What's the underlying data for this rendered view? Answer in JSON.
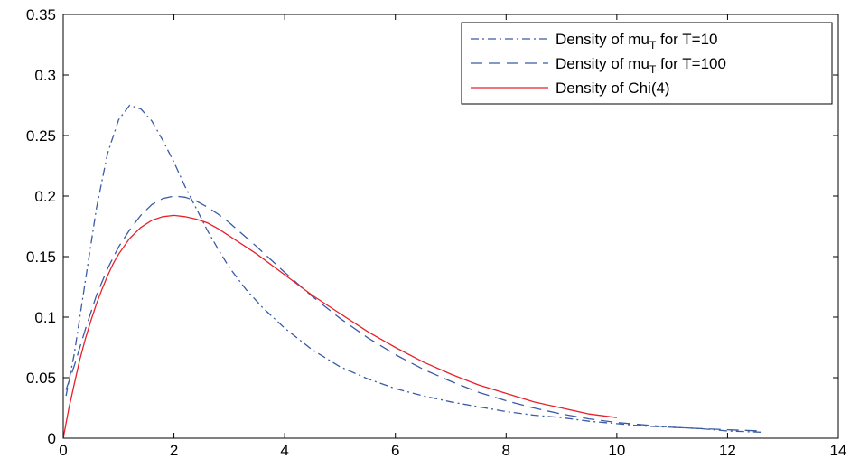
{
  "chart_data": {
    "type": "line",
    "title": "",
    "xlabel": "",
    "ylabel": "",
    "xlim": [
      0,
      14
    ],
    "ylim": [
      0,
      0.35
    ],
    "xticks": [
      0,
      2,
      4,
      6,
      8,
      10,
      12,
      14
    ],
    "yticks": [
      0,
      0.05,
      0.1,
      0.15,
      0.2,
      0.25,
      0.3,
      0.35
    ],
    "xtick_labels": [
      "0",
      "2",
      "4",
      "6",
      "8",
      "10",
      "12",
      "14"
    ],
    "ytick_labels": [
      "0",
      "0.05",
      "0.1",
      "0.15",
      "0.2",
      "0.25",
      "0.3",
      "0.35"
    ],
    "grid": false,
    "legend_position": "top-right",
    "series": [
      {
        "name": "Density of mu_T for T=10",
        "label_main": "Density of mu",
        "label_sub": "T",
        "label_tail": " for T=10",
        "color": "#3b5ba5",
        "style": "dashdot",
        "points": [
          [
            0.05,
            0.035
          ],
          [
            0.2,
            0.07
          ],
          [
            0.4,
            0.13
          ],
          [
            0.6,
            0.19
          ],
          [
            0.8,
            0.235
          ],
          [
            1.0,
            0.263
          ],
          [
            1.2,
            0.275
          ],
          [
            1.4,
            0.272
          ],
          [
            1.6,
            0.262
          ],
          [
            1.8,
            0.246
          ],
          [
            2.0,
            0.228
          ],
          [
            2.2,
            0.208
          ],
          [
            2.4,
            0.19
          ],
          [
            2.6,
            0.172
          ],
          [
            2.8,
            0.156
          ],
          [
            3.0,
            0.141
          ],
          [
            3.3,
            0.123
          ],
          [
            3.6,
            0.108
          ],
          [
            4.0,
            0.091
          ],
          [
            4.5,
            0.073
          ],
          [
            5.0,
            0.059
          ],
          [
            5.5,
            0.049
          ],
          [
            6.0,
            0.041
          ],
          [
            6.5,
            0.035
          ],
          [
            7.0,
            0.03
          ],
          [
            7.5,
            0.026
          ],
          [
            8.0,
            0.022
          ],
          [
            8.5,
            0.019
          ],
          [
            9.0,
            0.017
          ],
          [
            9.5,
            0.014
          ],
          [
            10.0,
            0.012
          ],
          [
            10.5,
            0.01
          ],
          [
            11.0,
            0.009
          ],
          [
            11.5,
            0.008
          ],
          [
            12.0,
            0.006
          ],
          [
            12.6,
            0.005
          ]
        ]
      },
      {
        "name": "Density of mu_T for T=100",
        "label_main": "Density of mu",
        "label_sub": "T",
        "label_tail": " for T=100",
        "color": "#3b5ba5",
        "style": "dashed",
        "points": [
          [
            0.05,
            0.04
          ],
          [
            0.2,
            0.06
          ],
          [
            0.4,
            0.09
          ],
          [
            0.6,
            0.118
          ],
          [
            0.8,
            0.14
          ],
          [
            1.0,
            0.158
          ],
          [
            1.2,
            0.172
          ],
          [
            1.4,
            0.184
          ],
          [
            1.6,
            0.193
          ],
          [
            1.8,
            0.198
          ],
          [
            2.0,
            0.2
          ],
          [
            2.2,
            0.199
          ],
          [
            2.4,
            0.196
          ],
          [
            2.6,
            0.191
          ],
          [
            2.8,
            0.185
          ],
          [
            3.0,
            0.178
          ],
          [
            3.5,
            0.158
          ],
          [
            4.0,
            0.137
          ],
          [
            4.5,
            0.117
          ],
          [
            5.0,
            0.099
          ],
          [
            5.5,
            0.083
          ],
          [
            6.0,
            0.069
          ],
          [
            6.5,
            0.057
          ],
          [
            7.0,
            0.047
          ],
          [
            7.5,
            0.038
          ],
          [
            8.0,
            0.031
          ],
          [
            8.5,
            0.025
          ],
          [
            9.0,
            0.02
          ],
          [
            9.5,
            0.016
          ],
          [
            10.0,
            0.013
          ],
          [
            10.5,
            0.011
          ],
          [
            11.0,
            0.009
          ],
          [
            11.5,
            0.008
          ],
          [
            12.0,
            0.007
          ],
          [
            12.6,
            0.006
          ]
        ]
      },
      {
        "name": "Density of Chi(4)",
        "label_main": "Density of Chi(4)",
        "label_sub": "",
        "label_tail": "",
        "color": "#e8202a",
        "style": "solid",
        "points": [
          [
            0,
            0.0
          ],
          [
            0.1,
            0.024
          ],
          [
            0.2,
            0.045
          ],
          [
            0.3,
            0.065
          ],
          [
            0.4,
            0.082
          ],
          [
            0.5,
            0.097
          ],
          [
            0.6,
            0.111
          ],
          [
            0.7,
            0.123
          ],
          [
            0.8,
            0.134
          ],
          [
            0.9,
            0.144
          ],
          [
            1.0,
            0.152
          ],
          [
            1.2,
            0.165
          ],
          [
            1.4,
            0.174
          ],
          [
            1.6,
            0.18
          ],
          [
            1.8,
            0.183
          ],
          [
            2.0,
            0.184
          ],
          [
            2.2,
            0.183
          ],
          [
            2.4,
            0.181
          ],
          [
            2.6,
            0.178
          ],
          [
            2.8,
            0.173
          ],
          [
            3.0,
            0.167
          ],
          [
            3.5,
            0.152
          ],
          [
            4.0,
            0.135
          ],
          [
            4.5,
            0.118
          ],
          [
            5.0,
            0.103
          ],
          [
            5.5,
            0.088
          ],
          [
            6.0,
            0.075
          ],
          [
            6.5,
            0.063
          ],
          [
            7.0,
            0.053
          ],
          [
            7.5,
            0.044
          ],
          [
            8.0,
            0.037
          ],
          [
            8.5,
            0.03
          ],
          [
            9.0,
            0.025
          ],
          [
            9.5,
            0.02
          ],
          [
            10.0,
            0.017
          ]
        ]
      }
    ]
  }
}
